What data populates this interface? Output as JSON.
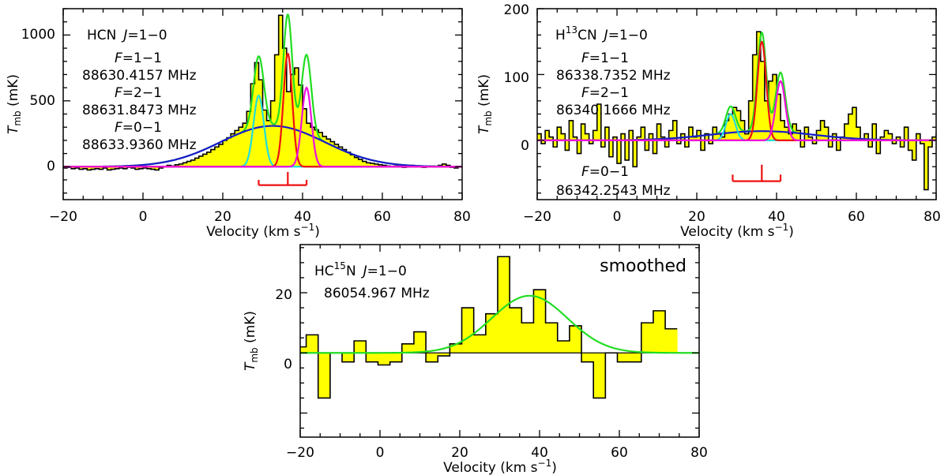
{
  "figure": {
    "panels": [
      {
        "molecule": {
          "pre": "HCN",
          "sup": "",
          "post": ""
        },
        "transition": {
          "j": "J",
          "rest": "=1−0"
        },
        "lines": [
          {
            "label": {
              "f": "F",
              "rest": "=1−1"
            },
            "freq": "88630.4157 MHz"
          },
          {
            "label": {
              "f": "F",
              "rest": "=2−1"
            },
            "freq": "88631.8473 MHz"
          },
          {
            "label": {
              "f": "F",
              "rest": "=0−1"
            },
            "freq": "88633.9360 MHz"
          }
        ],
        "axis_label_x": {
          "main": "Velocity (km s",
          "sup": "−1",
          "close": ")"
        },
        "axis_label_y": {
          "main": "T",
          "sub": "mb",
          "unit": " (mK)"
        },
        "xticks": [
          "−20",
          "0",
          "20",
          "40",
          "60",
          "80"
        ],
        "yticks": [
          "0",
          "500",
          "1000"
        ],
        "tag": ""
      },
      {
        "molecule": {
          "pre": "H",
          "sup": "13",
          "post": "CN"
        },
        "transition": {
          "j": "J",
          "rest": "=1−0"
        },
        "lines": [
          {
            "label": {
              "f": "F",
              "rest": "=1−1"
            },
            "freq": "86338.7352 MHz"
          },
          {
            "label": {
              "f": "F",
              "rest": "=2−1"
            },
            "freq": "86340.1666 MHz"
          },
          {
            "label": {
              "f": "F",
              "rest": "=0−1"
            },
            "freq": "86342.2543 MHz"
          }
        ],
        "axis_label_x": {
          "main": "Velocity (km s",
          "sup": "−1",
          "close": ")"
        },
        "axis_label_y": {
          "main": "T",
          "sub": "mb",
          "unit": " (mK)"
        },
        "xticks": [
          "−20",
          "0",
          "20",
          "40",
          "60",
          "80"
        ],
        "yticks": [
          "0",
          "100",
          "200"
        ],
        "tag": ""
      },
      {
        "molecule": {
          "pre": "HC",
          "sup": "15",
          "post": "N"
        },
        "transition": {
          "j": "J",
          "rest": "=1−0"
        },
        "lines": [
          {
            "label": {
              "f": "",
              "rest": ""
            },
            "freq": "86054.967 MHz"
          }
        ],
        "axis_label_x": {
          "main": "Velocity (km s",
          "sup": "−1",
          "close": ")"
        },
        "axis_label_y": {
          "main": "T",
          "sub": "mb",
          "unit": " (mK)"
        },
        "xticks": [
          "−20",
          "0",
          "20",
          "40",
          "60",
          "80"
        ],
        "yticks": [
          "0",
          "20"
        ],
        "tag": "smoothed"
      }
    ]
  },
  "chart_data": [
    {
      "type": "line",
      "title": "HCN J=1-0",
      "xlabel": "Velocity (km s-1)",
      "ylabel": "Tmb (mK)",
      "xlim": [
        -20,
        80
      ],
      "ylim": [
        -250,
        1200
      ],
      "baseline": 0,
      "spectrum": {
        "x0": -20,
        "dx": 1,
        "y": [
          -10,
          -5,
          -15,
          -10,
          -20,
          -15,
          -25,
          -20,
          -15,
          -20,
          -10,
          -25,
          -20,
          -15,
          -10,
          -15,
          -5,
          -10,
          -20,
          -15,
          -10,
          -15,
          -20,
          -25,
          -10,
          0,
          10,
          5,
          15,
          20,
          30,
          40,
          50,
          65,
          80,
          95,
          110,
          130,
          150,
          170,
          200,
          220,
          250,
          275,
          300,
          330,
          420,
          630,
          790,
          660,
          430,
          350,
          500,
          850,
          1150,
          900,
          570,
          700,
          750,
          620,
          440,
          330,
          300,
          280,
          260,
          230,
          210,
          190,
          170,
          150,
          130,
          110,
          90,
          70,
          55,
          40,
          30,
          25,
          20,
          15,
          10,
          5,
          0,
          5,
          0,
          -5,
          0,
          10,
          5,
          0,
          -5,
          0,
          5,
          0,
          10,
          20,
          10,
          -5,
          -10,
          0,
          5
        ]
      },
      "fits": [
        {
          "name": "total fit",
          "color": "#22dd22",
          "components": [
            [
              310,
              32.5,
              13
            ],
            [
              540,
              29,
              1.3
            ],
            [
              860,
              36.3,
              1.1
            ],
            [
              600,
              41,
              1.2
            ]
          ]
        },
        {
          "name": "broad component",
          "color": "#1a1acd",
          "components": [
            [
              310,
              32.5,
              13
            ]
          ]
        },
        {
          "name": "F=1-1 component",
          "color": "#22dddd",
          "components": [
            [
              540,
              29,
              1.3
            ]
          ]
        },
        {
          "name": "F=2-1 component",
          "color": "#ee1111",
          "components": [
            [
              860,
              36.3,
              1.1
            ]
          ]
        },
        {
          "name": "F=0-1 component",
          "color": "#ee11dd",
          "components": [
            [
              600,
              41,
              1.2
            ]
          ]
        }
      ],
      "hyperfine_markers": {
        "color": "#ee1111",
        "center": 36.3,
        "offsets": [
          -7.3,
          0,
          4.7
        ],
        "heights": [
          40,
          100,
          40
        ],
        "level": -140
      }
    },
    {
      "type": "line",
      "title": "H13CN J=1-0",
      "xlabel": "Velocity (km s-1)",
      "ylabel": "Tmb (mK)",
      "xlim": [
        -20,
        80
      ],
      "ylim": [
        -90,
        200
      ],
      "baseline": 0,
      "spectrum": {
        "x0": -20,
        "dx": 1,
        "y": [
          10,
          -5,
          15,
          5,
          -10,
          20,
          10,
          -15,
          30,
          5,
          -20,
          25,
          10,
          -5,
          15,
          55,
          -10,
          20,
          -25,
          5,
          -35,
          10,
          -30,
          15,
          -40,
          5,
          20,
          -15,
          10,
          -20,
          25,
          5,
          -10,
          15,
          30,
          -5,
          10,
          -10,
          20,
          5,
          15,
          -15,
          10,
          -5,
          20,
          10,
          5,
          30,
          40,
          50,
          45,
          30,
          10,
          60,
          130,
          165,
          120,
          60,
          90,
          100,
          70,
          30,
          20,
          10,
          25,
          15,
          -10,
          20,
          5,
          -5,
          15,
          30,
          20,
          -10,
          10,
          -15,
          5,
          25,
          40,
          50,
          20,
          0,
          10,
          -10,
          25,
          -20,
          5,
          15,
          10,
          -5,
          5,
          -10,
          20,
          -15,
          -30,
          10,
          -5,
          -75,
          -10,
          5,
          10
        ]
      },
      "fits": [
        {
          "name": "total fit",
          "color": "#22dd22",
          "components": [
            [
              14,
              36.3,
              13
            ],
            [
              40,
              28.5,
              1.2
            ],
            [
              150,
              36.3,
              1.1
            ],
            [
              90,
              41,
              1.2
            ]
          ]
        },
        {
          "name": "broad component",
          "color": "#1a1acd",
          "components": [
            [
              14,
              36.3,
              13
            ]
          ]
        },
        {
          "name": "F=1-1 component",
          "color": "#22dddd",
          "components": [
            [
              40,
              28.5,
              1.2
            ]
          ]
        },
        {
          "name": "F=2-1 component",
          "color": "#ee1111",
          "components": [
            [
              150,
              36.3,
              1.1
            ]
          ]
        },
        {
          "name": "F=0-1 component",
          "color": "#ee11dd",
          "components": [
            [
              90,
              41,
              1.2
            ]
          ]
        }
      ],
      "hyperfine_markers": {
        "color": "#ee1111",
        "center": 36.3,
        "offsets": [
          -7.3,
          0,
          4.7
        ],
        "heights": [
          10,
          25,
          10
        ],
        "level": -62
      }
    },
    {
      "type": "line",
      "title": "HC15N J=1-0 (smoothed)",
      "xlabel": "Velocity (km s-1)",
      "ylabel": "Tmb (mK)",
      "xlim": [
        -20,
        80
      ],
      "ylim": [
        -28,
        36
      ],
      "baseline": 0,
      "spectrum": {
        "x0": -21.5,
        "dx": 3,
        "y": [
          2,
          6,
          -15,
          0,
          -3,
          4,
          -3,
          -4,
          -3,
          3,
          7,
          -3,
          -1,
          3,
          15,
          6,
          13,
          32,
          15,
          10,
          21,
          10,
          4,
          9,
          -3,
          -15,
          0,
          -3,
          -3,
          10,
          14,
          8
        ]
      },
      "fits": [
        {
          "name": "gaussian fit",
          "color": "#22dd22",
          "components": [
            [
              19,
              37.5,
              9.5
            ]
          ]
        }
      ]
    }
  ]
}
